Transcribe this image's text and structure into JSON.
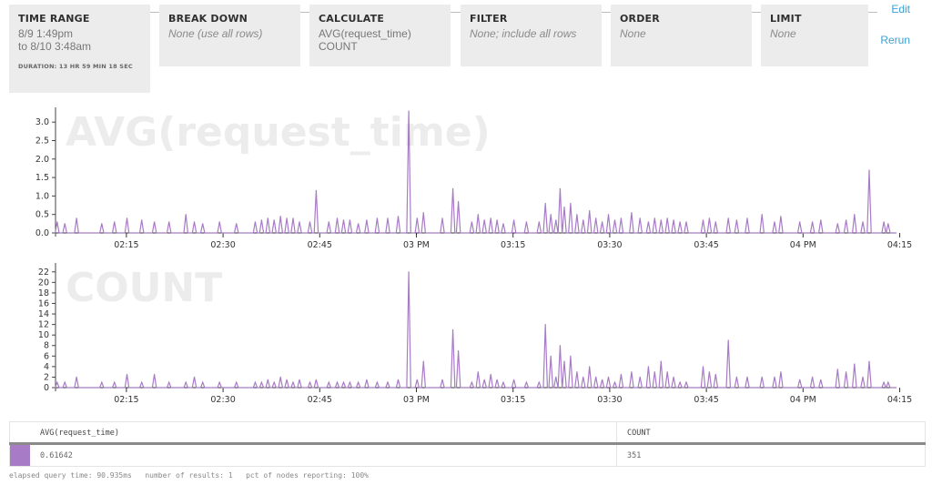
{
  "query_builder": {
    "time_range": {
      "title": "TIME RANGE",
      "start": "8/9 1:49pm",
      "end": "to 8/10 3:48am",
      "duration": "DURATION: 13 HR 59 MIN 18 SEC"
    },
    "break_down": {
      "title": "BREAK DOWN",
      "value": "None (use all rows)"
    },
    "calculate": {
      "title": "CALCULATE",
      "values": [
        "AVG(request_time)",
        "COUNT"
      ]
    },
    "filter": {
      "title": "FILTER",
      "value": "None; include all rows"
    },
    "order": {
      "title": "ORDER",
      "value": "None"
    },
    "limit": {
      "title": "LIMIT",
      "value": "None"
    },
    "edit_label": "Edit",
    "rerun_label": "Rerun"
  },
  "chart_data": [
    {
      "type": "line",
      "title": "AVG(request_time)",
      "color": "#a87bc6",
      "x_tick_labels": [
        "02:15",
        "02:30",
        "02:45",
        "03 PM",
        "03:15",
        "03:30",
        "03:45",
        "04 PM",
        "04:15"
      ],
      "y_tick_labels": [
        "0.0",
        "0.5",
        "1.0",
        "1.5",
        "2.0",
        "2.5",
        "3.0"
      ],
      "ylim": [
        0,
        3.3
      ],
      "x_range_minutes": [
        0,
        130.5
      ],
      "peaks": [
        [
          0.4,
          0.3
        ],
        [
          2.2,
          0.25
        ],
        [
          5,
          0.4
        ],
        [
          11,
          0.25
        ],
        [
          14,
          0.3
        ],
        [
          17,
          0.4
        ],
        [
          20.5,
          0.35
        ],
        [
          23.5,
          0.3
        ],
        [
          27,
          0.3
        ],
        [
          31,
          0.5
        ],
        [
          33,
          0.3
        ],
        [
          35,
          0.25
        ],
        [
          39,
          0.3
        ],
        [
          43,
          0.25
        ],
        [
          47.5,
          0.3
        ],
        [
          49,
          0.35
        ],
        [
          50.5,
          0.4
        ],
        [
          52,
          0.35
        ],
        [
          53.5,
          0.45
        ],
        [
          55,
          0.4
        ],
        [
          56.5,
          0.4
        ],
        [
          58,
          0.3
        ],
        [
          60.5,
          0.3
        ],
        [
          62,
          1.15
        ],
        [
          65,
          0.3
        ],
        [
          67,
          0.4
        ],
        [
          68.5,
          0.35
        ],
        [
          70,
          0.35
        ],
        [
          72,
          0.25
        ],
        [
          74,
          0.35
        ],
        [
          76.5,
          0.4
        ],
        [
          79,
          0.4
        ],
        [
          81.5,
          0.45
        ],
        [
          84,
          3.3
        ],
        [
          86,
          0.4
        ],
        [
          87.5,
          0.55
        ],
        [
          92,
          0.4
        ],
        [
          94.5,
          1.2
        ],
        [
          95.8,
          0.85
        ],
        [
          99,
          0.3
        ],
        [
          100.5,
          0.5
        ],
        [
          102,
          0.35
        ],
        [
          103.5,
          0.4
        ],
        [
          105,
          0.35
        ],
        [
          106.5,
          0.25
        ],
        [
          109,
          0.35
        ],
        [
          112,
          0.3
        ],
        [
          115,
          0.3
        ],
        [
          116.5,
          0.8
        ],
        [
          117.8,
          0.5
        ],
        [
          119,
          0.35
        ],
        [
          120,
          1.2
        ],
        [
          121,
          0.7
        ],
        [
          122.5,
          0.8
        ],
        [
          124,
          0.5
        ],
        [
          125.5,
          0.35
        ],
        [
          127,
          0.6
        ],
        [
          128.5,
          0.4
        ],
        [
          130,
          0.3
        ],
        [
          131.5,
          0.5
        ],
        [
          133,
          0.35
        ],
        [
          134.5,
          0.4
        ],
        [
          137,
          0.55
        ],
        [
          139,
          0.4
        ],
        [
          141,
          0.3
        ],
        [
          142.5,
          0.4
        ],
        [
          144,
          0.35
        ],
        [
          145.5,
          0.4
        ],
        [
          147,
          0.35
        ],
        [
          148.5,
          0.3
        ],
        [
          150,
          0.3
        ],
        [
          154,
          0.35
        ],
        [
          155.5,
          0.4
        ],
        [
          157,
          0.3
        ],
        [
          160,
          0.4
        ],
        [
          162,
          0.35
        ],
        [
          164.5,
          0.4
        ],
        [
          168,
          0.5
        ],
        [
          171,
          0.3
        ],
        [
          172.5,
          0.45
        ],
        [
          177,
          0.3
        ],
        [
          180,
          0.3
        ],
        [
          182,
          0.35
        ],
        [
          186,
          0.25
        ],
        [
          188,
          0.35
        ],
        [
          190,
          0.5
        ],
        [
          192,
          0.3
        ],
        [
          193.5,
          1.7
        ],
        [
          197,
          0.3
        ],
        [
          198,
          0.25
        ]
      ]
    },
    {
      "type": "line",
      "title": "COUNT",
      "color": "#a87bc6",
      "x_tick_labels": [
        "02:15",
        "02:30",
        "02:45",
        "03 PM",
        "03:15",
        "03:30",
        "03:45",
        "04 PM",
        "04:15"
      ],
      "y_tick_labels": [
        "0",
        "2",
        "4",
        "6",
        "8",
        "10",
        "12",
        "14",
        "16",
        "18",
        "20",
        "22"
      ],
      "ylim": [
        0,
        23
      ],
      "x_range_minutes": [
        0,
        130.5
      ],
      "peaks": [
        [
          0.4,
          1
        ],
        [
          2.2,
          1
        ],
        [
          5,
          2
        ],
        [
          11,
          1
        ],
        [
          14,
          1
        ],
        [
          17,
          2.5
        ],
        [
          20.5,
          1
        ],
        [
          23.5,
          2.5
        ],
        [
          27,
          1
        ],
        [
          31,
          1
        ],
        [
          33,
          2
        ],
        [
          35,
          1
        ],
        [
          39,
          1
        ],
        [
          43,
          1
        ],
        [
          47.5,
          1
        ],
        [
          49,
          1
        ],
        [
          50.5,
          1.5
        ],
        [
          52,
          1
        ],
        [
          53.5,
          2
        ],
        [
          55,
          1.5
        ],
        [
          56.5,
          1
        ],
        [
          58,
          1.5
        ],
        [
          60.5,
          1
        ],
        [
          62,
          1.5
        ],
        [
          65,
          1
        ],
        [
          67,
          1
        ],
        [
          68.5,
          1
        ],
        [
          70,
          1
        ],
        [
          72,
          1
        ],
        [
          74,
          1.5
        ],
        [
          76.5,
          1
        ],
        [
          79,
          1
        ],
        [
          81.5,
          1.5
        ],
        [
          84,
          22
        ],
        [
          86,
          1.5
        ],
        [
          87.5,
          5
        ],
        [
          92,
          1.5
        ],
        [
          94.5,
          11
        ],
        [
          95.8,
          7
        ],
        [
          99,
          1
        ],
        [
          100.5,
          3
        ],
        [
          102,
          1.5
        ],
        [
          103.5,
          2.5
        ],
        [
          105,
          1.5
        ],
        [
          106.5,
          1
        ],
        [
          109,
          1.5
        ],
        [
          112,
          1
        ],
        [
          115,
          1
        ],
        [
          116.5,
          12
        ],
        [
          117.8,
          6
        ],
        [
          119,
          2
        ],
        [
          120,
          8
        ],
        [
          121,
          5
        ],
        [
          122.5,
          6
        ],
        [
          124,
          3
        ],
        [
          125.5,
          2
        ],
        [
          127,
          4
        ],
        [
          128.5,
          2
        ],
        [
          130,
          1.5
        ],
        [
          131.5,
          2
        ],
        [
          133,
          1
        ],
        [
          134.5,
          2.5
        ],
        [
          137,
          3
        ],
        [
          139,
          2
        ],
        [
          141,
          4
        ],
        [
          142.5,
          3
        ],
        [
          144,
          5
        ],
        [
          145.5,
          3
        ],
        [
          147,
          2
        ],
        [
          148.5,
          1
        ],
        [
          150,
          1
        ],
        [
          154,
          4
        ],
        [
          155.5,
          3
        ],
        [
          157,
          2.5
        ],
        [
          160,
          9
        ],
        [
          162,
          2
        ],
        [
          164.5,
          2
        ],
        [
          168,
          2
        ],
        [
          171,
          2
        ],
        [
          172.5,
          3
        ],
        [
          177,
          1.5
        ],
        [
          180,
          2
        ],
        [
          182,
          1.5
        ],
        [
          186,
          3.5
        ],
        [
          188,
          3
        ],
        [
          190,
          4.5
        ],
        [
          192,
          2
        ],
        [
          193.5,
          5
        ],
        [
          197,
          1
        ],
        [
          198,
          1
        ]
      ]
    }
  ],
  "results": {
    "columns": [
      "AVG(request_time)",
      "COUNT"
    ],
    "row": [
      "0.61642",
      "351"
    ]
  },
  "footer": {
    "elapsed": "elapsed query time: 90.935ms",
    "results": "number of results: 1",
    "nodes": "pct of nodes reporting: 100%"
  }
}
